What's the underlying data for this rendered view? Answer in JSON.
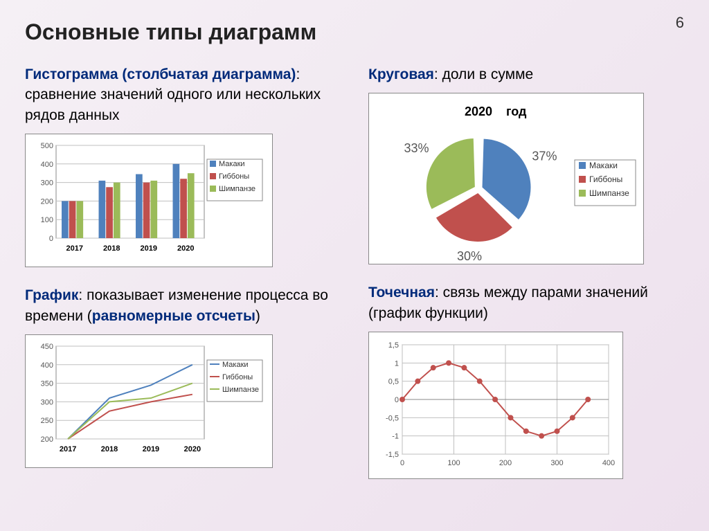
{
  "page_number": "6",
  "title": "Основные типы диаграмм",
  "histogram": {
    "heading_bold": "Гистограмма (столбчатая диаграмма)",
    "heading_rest": ": сравнение значений одного или нескольких рядов данных",
    "type": "bar",
    "categories": [
      "2017",
      "2018",
      "2019",
      "2020"
    ],
    "series": [
      {
        "name": "Макаки",
        "color": "#4f81bd",
        "values": [
          200,
          310,
          345,
          400
        ]
      },
      {
        "name": "Гиббоны",
        "color": "#c0504d",
        "values": [
          200,
          275,
          300,
          320
        ]
      },
      {
        "name": "Шимпанзе",
        "color": "#9bbb59",
        "values": [
          200,
          300,
          310,
          350
        ]
      }
    ],
    "y_ticks": [
      0,
      100,
      200,
      300,
      400,
      500
    ],
    "ymax": 500,
    "grid_color": "#bfbfbf",
    "bg": "#ffffff",
    "tick_font": 11
  },
  "pie": {
    "heading_bold": "Круговая",
    "heading_rest": ": доли в сумме",
    "type": "pie",
    "year": "2020",
    "title_text": "год",
    "slices": [
      {
        "name": "Макаки",
        "color": "#4f81bd",
        "pct": 37,
        "label": "37%"
      },
      {
        "name": "Гиббоны",
        "color": "#c0504d",
        "pct": 30,
        "label": "30%"
      },
      {
        "name": "Шимпанзе",
        "color": "#9bbb59",
        "pct": 33,
        "label": "33%"
      }
    ],
    "bg": "#ffffff",
    "label_font": 18,
    "title_font": 18
  },
  "linechart": {
    "heading_bold": "График",
    "heading_rest": ": показывает изменение процесса во времени (",
    "heading_bold2": "равномерные отсчеты",
    "heading_rest2": ")",
    "type": "line",
    "categories": [
      "2017",
      "2018",
      "2019",
      "2020"
    ],
    "series": [
      {
        "name": "Макаки",
        "color": "#4f81bd",
        "values": [
          200,
          310,
          345,
          400
        ]
      },
      {
        "name": "Гиббоны",
        "color": "#c0504d",
        "values": [
          200,
          275,
          300,
          320
        ]
      },
      {
        "name": "Шимпанзе",
        "color": "#9bbb59",
        "values": [
          200,
          300,
          310,
          350
        ]
      }
    ],
    "y_ticks": [
      200,
      250,
      300,
      350,
      400,
      450
    ],
    "ymin": 200,
    "ymax": 450,
    "grid_color": "#bfbfbf",
    "line_width": 2
  },
  "scatter": {
    "heading_bold": "Точечная",
    "heading_rest": ": связь между парами значений (график функции)",
    "type": "scatter-line",
    "color": "#c0504d",
    "x_ticks": [
      0,
      100,
      200,
      300,
      400
    ],
    "y_ticks": [
      -1.5,
      -1,
      -0.5,
      0,
      0.5,
      1,
      1.5
    ],
    "xmin": 0,
    "xmax": 400,
    "ymin": -1.5,
    "ymax": 1.5,
    "points": [
      [
        0,
        0
      ],
      [
        30,
        0.5
      ],
      [
        60,
        0.87
      ],
      [
        90,
        1
      ],
      [
        120,
        0.87
      ],
      [
        150,
        0.5
      ],
      [
        180,
        0
      ],
      [
        210,
        -0.5
      ],
      [
        240,
        -0.87
      ],
      [
        270,
        -1
      ],
      [
        300,
        -0.87
      ],
      [
        330,
        -0.5
      ],
      [
        360,
        0
      ]
    ],
    "grid_color": "#bfbfbf",
    "marker_size": 4,
    "line_width": 2
  }
}
